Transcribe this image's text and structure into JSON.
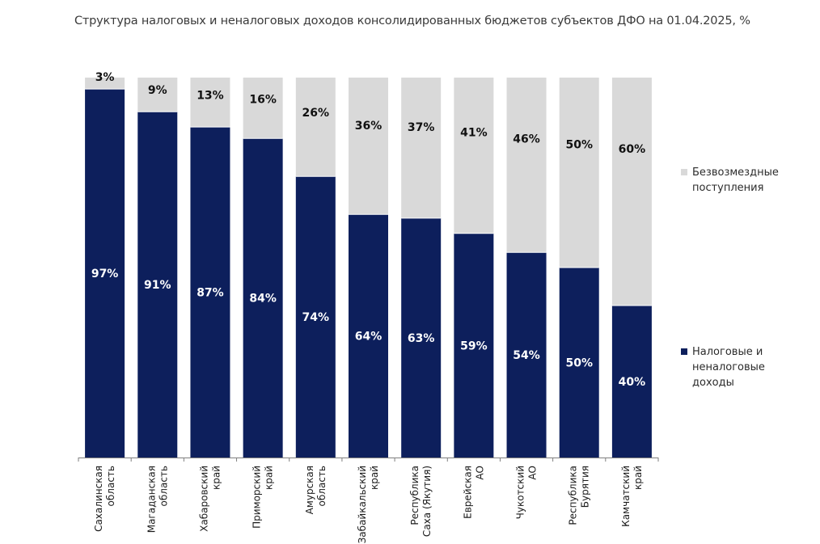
{
  "chart_data": {
    "type": "bar",
    "stacked": true,
    "title": "Структура налоговых и неналоговых доходов консолидированных бюджетов субъектов ДФО на 01.04.2025, %",
    "categories": [
      [
        "Сахалинская",
        "область"
      ],
      [
        "Магаданская",
        "область"
      ],
      [
        "Хабаровский",
        "край"
      ],
      [
        "Приморский",
        "край"
      ],
      [
        "Амурская",
        "область"
      ],
      [
        "Забайкальский",
        "край"
      ],
      [
        "Республика",
        "Саха (Якутия)"
      ],
      [
        "Еврейская",
        "АО"
      ],
      [
        "Чукотский",
        "АО"
      ],
      [
        "Республика",
        "Бурятия"
      ],
      [
        "Камчатский",
        "край"
      ]
    ],
    "series": [
      {
        "name": "Налоговые и неналоговые доходы",
        "color": "#0d1f5c",
        "values": [
          97,
          91,
          87,
          84,
          74,
          64,
          63,
          59,
          54,
          50,
          40
        ],
        "labels": [
          "97%",
          "91%",
          "87%",
          "84%",
          "74%",
          "64%",
          "63%",
          "59%",
          "54%",
          "50%",
          "40%"
        ]
      },
      {
        "name": "Безвозмездные поступления",
        "color": "#d9d9d9",
        "values": [
          3,
          9,
          13,
          16,
          26,
          36,
          37,
          41,
          46,
          50,
          60
        ],
        "labels": [
          "3%",
          "9%",
          "13%",
          "16%",
          "26%",
          "36%",
          "37%",
          "41%",
          "46%",
          "50%",
          "60%"
        ]
      }
    ],
    "ylim": [
      0,
      100
    ],
    "grid": false,
    "legend_position": "right"
  },
  "legend": [
    {
      "label": "Безвозмездные поступления",
      "color": "#d9d9d9"
    },
    {
      "label": "Налоговые и неналоговые доходы",
      "color": "#0d1f5c"
    }
  ]
}
